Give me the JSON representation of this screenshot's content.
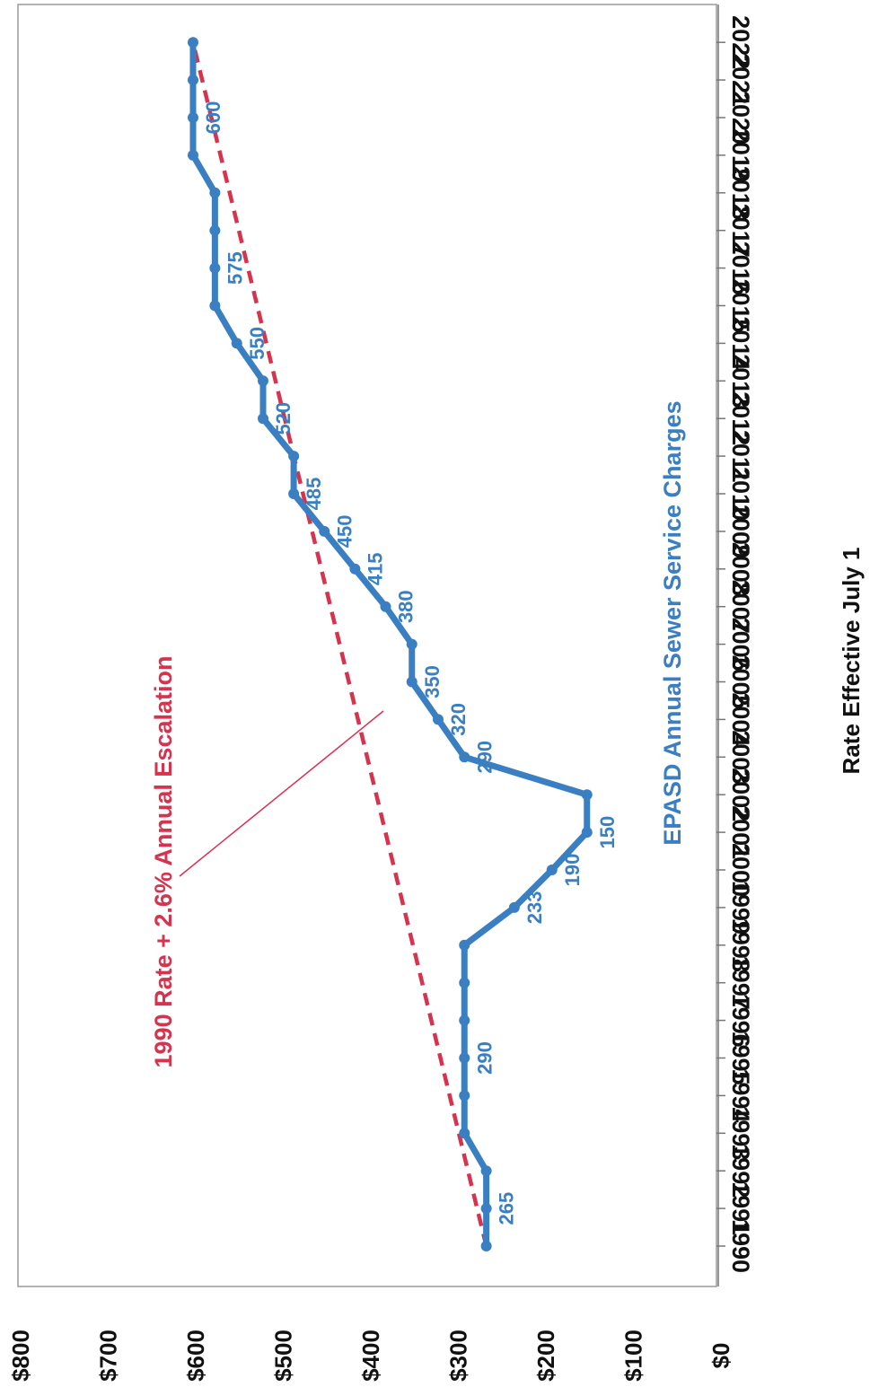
{
  "chart_data": {
    "type": "line",
    "title": "",
    "xlabel": "Rate Effective July 1",
    "ylabel": "",
    "ylim": [
      0,
      800
    ],
    "grid": false,
    "x": [
      1990,
      1991,
      1992,
      1993,
      1994,
      1995,
      1996,
      1997,
      1998,
      1999,
      2000,
      2001,
      2002,
      2003,
      2004,
      2005,
      2006,
      2007,
      2008,
      2009,
      2010,
      2011,
      2012,
      2013,
      2014,
      2015,
      2016,
      2017,
      2018,
      2019,
      2020,
      2021,
      2022
    ],
    "x_tick_labels": [
      "1990",
      "1991",
      "1992",
      "1993",
      "1994",
      "1995",
      "1996",
      "1997",
      "1998",
      "1999",
      "2000",
      "2001",
      "2002",
      "2003",
      "2004",
      "2005",
      "2006",
      "2007",
      "2008",
      "2009",
      "2010",
      "2011",
      "2012",
      "2013",
      "2014",
      "2015",
      "2016",
      "2017",
      "2018",
      "2019",
      "2020",
      "2021",
      "2022"
    ],
    "y_ticks": [
      0,
      100,
      200,
      300,
      400,
      500,
      600,
      700,
      800
    ],
    "y_tick_labels": [
      "$0",
      "$100",
      "$200",
      "$300",
      "$400",
      "$500",
      "$600",
      "$700",
      "$800"
    ],
    "series": [
      {
        "name": "EPASD Annual Sewer Service Charges",
        "color": "#3a7fc1",
        "style": "solid",
        "values": [
          265,
          265,
          265,
          290,
          290,
          290,
          290,
          290,
          290,
          233,
          190,
          150,
          150,
          290,
          320,
          350,
          350,
          380,
          415,
          450,
          485,
          485,
          520,
          520,
          550,
          575,
          575,
          575,
          575,
          600,
          600,
          600,
          600
        ]
      },
      {
        "name": "1990 Rate + 2.6% Annual Escalation",
        "color": "#d6334f",
        "style": "dashed",
        "start_value": 265,
        "end_value": 600
      }
    ],
    "data_labels": [
      {
        "year": 1991,
        "text": "265"
      },
      {
        "year": 1995,
        "text": "290"
      },
      {
        "year": 1999,
        "text": "233"
      },
      {
        "year": 2000,
        "text": "190"
      },
      {
        "year": 2001,
        "text": "150"
      },
      {
        "year": 2003,
        "text": "290"
      },
      {
        "year": 2004,
        "text": "320"
      },
      {
        "year": 2005,
        "text": "350"
      },
      {
        "year": 2007,
        "text": "380"
      },
      {
        "year": 2008,
        "text": "415"
      },
      {
        "year": 2009,
        "text": "450"
      },
      {
        "year": 2010,
        "text": "485"
      },
      {
        "year": 2012,
        "text": "520"
      },
      {
        "year": 2014,
        "text": "550"
      },
      {
        "year": 2016,
        "text": "575"
      },
      {
        "year": 2020,
        "text": "600"
      }
    ]
  }
}
